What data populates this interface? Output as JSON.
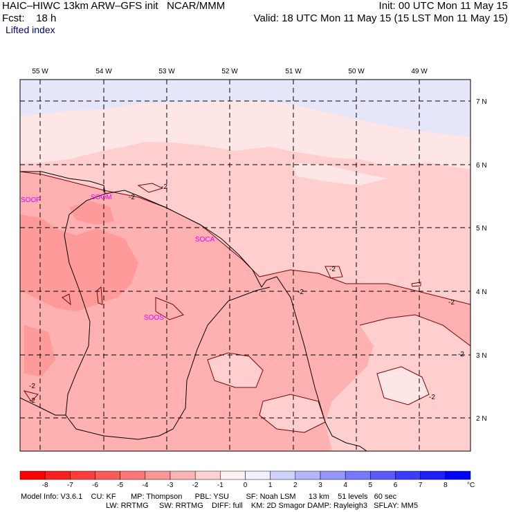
{
  "header": {
    "model_line": "HAIC–HIWC 13km ARW–GFS init   NCAR/MMM",
    "fcst_line": "Fcst:    18 h",
    "field_name": "Lifted index",
    "init_line": "Init: 00 UTC Mon 11 May 15",
    "valid_line": "Valid: 18 UTC Mon 11 May 15 (15 LST Mon 11 May 15)"
  },
  "longitude_labels": [
    "55 W",
    "54 W",
    "53 W",
    "52 W",
    "51 W",
    "50 W",
    "49 W"
  ],
  "latitude_labels": [
    "7 N",
    "6 N",
    "5 N",
    "4 N",
    "3 N",
    "2 N"
  ],
  "stations": [
    "SOOP",
    "SOOM",
    "SOCA",
    "SOOS"
  ],
  "contour_labels": [
    "-2",
    "-2",
    "-2",
    "-2",
    "-2",
    "-2",
    "-2",
    "-2",
    "-2"
  ],
  "colorbar": {
    "ticks": [
      "-8",
      "-7",
      "-6",
      "-5",
      "-4",
      "-3",
      "-2",
      "-1",
      "0",
      "1",
      "2",
      "3",
      "4",
      "5",
      "6",
      "7",
      "8"
    ],
    "unit": "°C",
    "colors": [
      "#ff0000",
      "#ff1e1e",
      "#ff3c3c",
      "#ff5a5a",
      "#ff7878",
      "#ff9696",
      "#ffb4b4",
      "#ffd2d2",
      "#fff0f0",
      "#f0f0ff",
      "#d2d2ff",
      "#b4b4ff",
      "#9696ff",
      "#7878ff",
      "#5a5aff",
      "#3c3cff",
      "#1e1eff",
      "#0000ff"
    ]
  },
  "footer": {
    "line1": "Model Info: V3.6.1    CU: KF       MP: Thompson      PBL: YSU        SF: Noah LSM      13 km    51 levels   60 sec",
    "line2": "LW: RRTMG     SW: RRTMG    DIFF: full    KM: 2D Smagor DAMP: Rayleigh3   SFLAY: MM5"
  },
  "map_colors": {
    "blue_light": "#e6e6fa",
    "very_light_pink": "#ffe6e6",
    "light_pink": "#ffcfcf",
    "medium_pink": "#ffb0b0",
    "darker_pink": "#ff9a9a",
    "grid": "#000000",
    "boundary": "#000000",
    "contour": "#800000"
  }
}
